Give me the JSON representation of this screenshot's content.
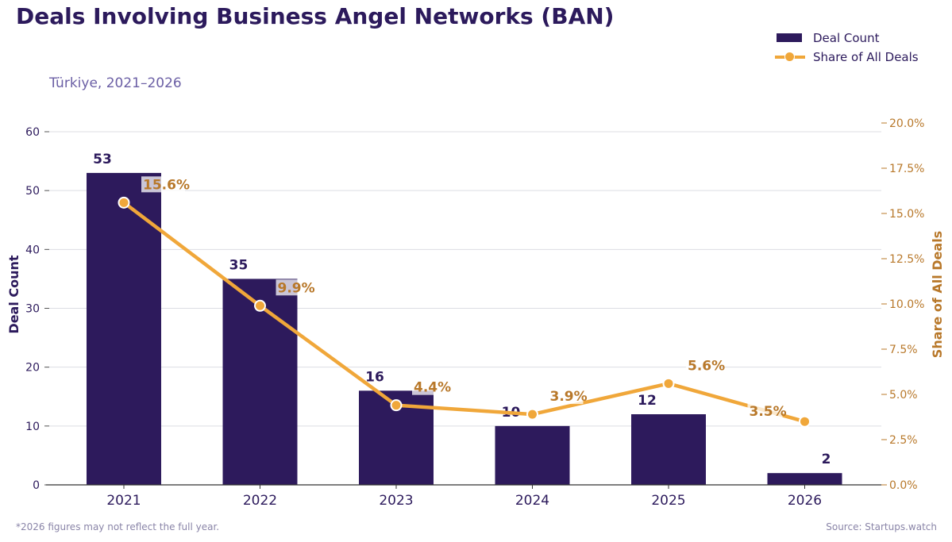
{
  "header": {
    "title": "Deals Involving Business Angel Networks (BAN)",
    "subtitle": "Türkiye, 2021–2026"
  },
  "legend": {
    "bar_label": "Deal Count",
    "line_label": "Share of All Deals"
  },
  "footer": {
    "note": "*2026 figures may not reflect the full year.",
    "source": "Source: Startups.watch"
  },
  "colors": {
    "bar": "#2d1a5c",
    "line": "#f0a73a",
    "share_label": "#b8782a",
    "count_label": "#2c1a5c"
  },
  "chart_data": {
    "type": "bar",
    "categories": [
      "2021",
      "2022",
      "2023",
      "2024",
      "2025",
      "2026"
    ],
    "series": [
      {
        "name": "Deal Count",
        "type": "bar",
        "axis": "left",
        "values": [
          53,
          35,
          16,
          10,
          12,
          2
        ],
        "labels": [
          "53",
          "35",
          "16",
          "10",
          "12",
          "2"
        ]
      },
      {
        "name": "Share of All Deals",
        "type": "line",
        "axis": "right",
        "values": [
          15.6,
          9.9,
          4.4,
          3.9,
          5.6,
          3.5
        ],
        "labels": [
          "15.6%",
          "9.9%",
          "4.4%",
          "3.9%",
          "5.6%",
          "3.5%"
        ]
      }
    ],
    "ylabel": "Deal Count",
    "ylim": [
      0,
      60
    ],
    "yticks": [
      0,
      10,
      20,
      30,
      40,
      50,
      60
    ],
    "y2label": "Share of All Deals",
    "y2lim": [
      0,
      20
    ],
    "y2ticks": [
      "0.0%",
      "2.5%",
      "5.0%",
      "7.5%",
      "10.0%",
      "12.5%",
      "15.0%",
      "17.5%",
      "20.0%"
    ],
    "grid": true,
    "legend_position": "top-right"
  }
}
